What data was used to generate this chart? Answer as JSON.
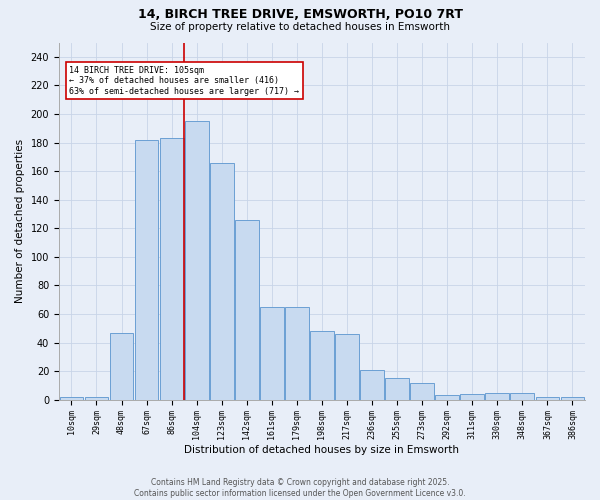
{
  "title_line1": "14, BIRCH TREE DRIVE, EMSWORTH, PO10 7RT",
  "title_line2": "Size of property relative to detached houses in Emsworth",
  "xlabel": "Distribution of detached houses by size in Emsworth",
  "ylabel": "Number of detached properties",
  "categories": [
    "10sqm",
    "29sqm",
    "48sqm",
    "67sqm",
    "86sqm",
    "104sqm",
    "123sqm",
    "142sqm",
    "161sqm",
    "179sqm",
    "198sqm",
    "217sqm",
    "236sqm",
    "255sqm",
    "273sqm",
    "292sqm",
    "311sqm",
    "330sqm",
    "348sqm",
    "367sqm",
    "386sqm"
  ],
  "bar_heights": [
    2,
    2,
    47,
    182,
    183,
    195,
    166,
    126,
    65,
    65,
    48,
    46,
    21,
    15,
    12,
    3,
    4,
    5,
    5,
    2,
    2
  ],
  "vline_x": 5,
  "bar_color": "#c8daf0",
  "bar_edge_color": "#6b9fd4",
  "vline_color": "#cc0000",
  "grid_color": "#c8d4e8",
  "bg_color": "#e8eef8",
  "annotation_box_facecolor": "#ffffff",
  "annotation_box_edgecolor": "#cc0000",
  "annotation_line1": "14 BIRCH TREE DRIVE: 105sqm",
  "annotation_line2": "← 37% of detached houses are smaller (416)",
  "annotation_line3": "63% of semi-detached houses are larger (717) →",
  "footer": "Contains HM Land Registry data © Crown copyright and database right 2025.\nContains public sector information licensed under the Open Government Licence v3.0.",
  "ylim": [
    0,
    250
  ],
  "yticks": [
    0,
    20,
    40,
    60,
    80,
    100,
    120,
    140,
    160,
    180,
    200,
    220,
    240
  ]
}
